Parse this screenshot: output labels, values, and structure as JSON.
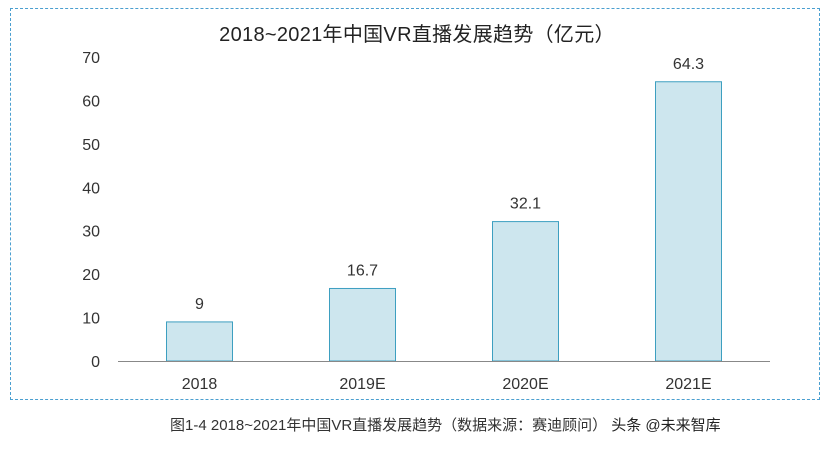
{
  "chart_data": {
    "type": "bar",
    "title": "2018~2021年中国VR直播发展趋势（亿元）",
    "categories": [
      "2018",
      "2019E",
      "2020E",
      "2021E"
    ],
    "values": [
      9,
      16.7,
      32.1,
      64.3
    ],
    "value_labels": [
      "9",
      "16.7",
      "32.1",
      "64.3"
    ],
    "ylim": [
      0,
      70
    ],
    "yticks": [
      0,
      10,
      20,
      30,
      40,
      50,
      60,
      70
    ],
    "grid": false,
    "legend": "none",
    "bar_fill": "#cde6ee",
    "bar_stroke": "#3d9fc0",
    "axis_color": "#888888"
  },
  "caption": {
    "figure_text": "图1-4 2018~2021年中国VR直播发展趋势（数据来源：赛迪顾问）",
    "watermark_text": "头条 @未来智库"
  }
}
